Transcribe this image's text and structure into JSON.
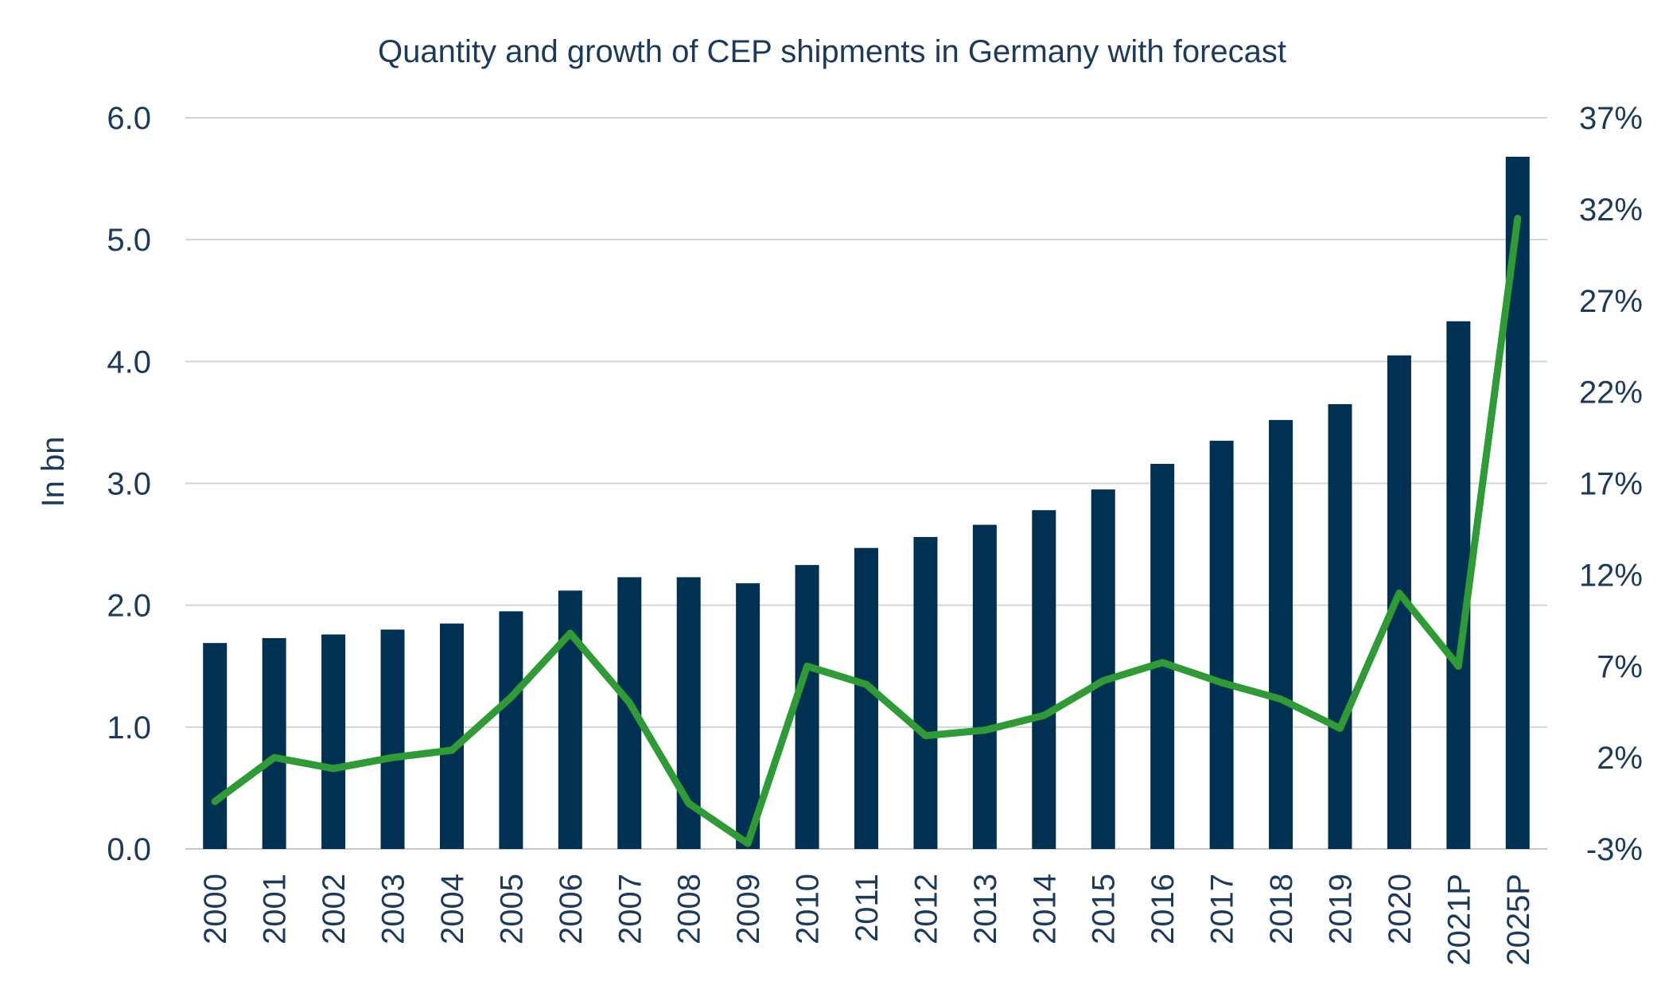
{
  "chart_data": {
    "type": "bar",
    "title": "Quantity and growth of CEP shipments in Germany with forecast",
    "ylabel": "In bn",
    "xlabel": "",
    "categories": [
      "2000",
      "2001",
      "2002",
      "2003",
      "2004",
      "2005",
      "2006",
      "2007",
      "2008",
      "2009",
      "2010",
      "2011",
      "2012",
      "2013",
      "2014",
      "2015",
      "2016",
      "2017",
      "2018",
      "2019",
      "2020",
      "2021P",
      "2025P"
    ],
    "series": [
      {
        "type": "bar",
        "axis": "left",
        "color": "#003153",
        "values": [
          1.69,
          1.73,
          1.76,
          1.8,
          1.85,
          1.95,
          2.12,
          2.23,
          2.23,
          2.18,
          2.33,
          2.47,
          2.56,
          2.66,
          2.78,
          2.95,
          3.16,
          3.35,
          3.52,
          3.65,
          4.05,
          4.33,
          5.68
        ]
      },
      {
        "type": "line",
        "axis": "right",
        "color": "#2e9b35",
        "values": [
          -0.4,
          2.0,
          1.4,
          2.0,
          2.4,
          5.3,
          8.8,
          5.0,
          -0.5,
          -2.7,
          7.0,
          6.0,
          3.2,
          3.5,
          4.3,
          6.2,
          7.2,
          6.1,
          5.2,
          3.6,
          11.0,
          7.0,
          31.5
        ]
      }
    ],
    "ylim": [
      0,
      6
    ],
    "yticks": [
      "0.0",
      "1.0",
      "2.0",
      "3.0",
      "4.0",
      "5.0",
      "6.0"
    ],
    "y2lim": [
      -3,
      37
    ],
    "y2ticks": [
      "-3%",
      "2%",
      "7%",
      "12%",
      "17%",
      "22%",
      "27%",
      "32%",
      "37%"
    ],
    "grid": true,
    "legend": "none"
  }
}
